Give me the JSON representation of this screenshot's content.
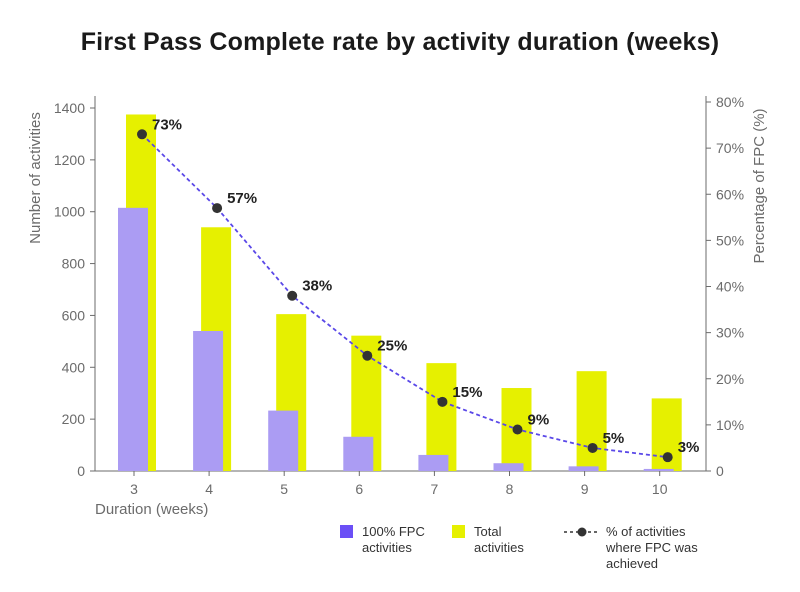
{
  "title": "First Pass Complete rate by activity duration (weeks)",
  "colors": {
    "fpc": "#ab9cf3",
    "total": "#e6f000",
    "line": "#5a48e8",
    "marker": "#333333",
    "axis": "#6b6b6b",
    "fpc_legend": "#6b4ff6"
  },
  "legend": {
    "fpc": "100% FPC activities",
    "total": "Total activities",
    "pct": "% of activities where FPC was achieved"
  },
  "chart_data": {
    "type": "bar",
    "categories": [
      "3",
      "4",
      "5",
      "6",
      "7",
      "8",
      "9",
      "10"
    ],
    "series": [
      {
        "name": "100% FPC activities",
        "values": [
          1015,
          540,
          233,
          132,
          62,
          30,
          18,
          8
        ]
      },
      {
        "name": "Total activities",
        "values": [
          1375,
          940,
          605,
          522,
          416,
          320,
          385,
          280
        ]
      },
      {
        "name": "% of activities where FPC was achieved",
        "values": [
          73,
          57,
          38,
          25,
          15,
          9,
          5,
          3
        ],
        "axis": "right"
      }
    ],
    "point_labels": [
      "73%",
      "57%",
      "38%",
      "25%",
      "15%",
      "9%",
      "5%",
      "3%"
    ],
    "xlabel": "Duration (weeks)",
    "ylabel": "Number of activities",
    "y2label": "Percentage of FPC (%)",
    "ylim": [
      0,
      1400
    ],
    "y2lim": [
      0,
      80
    ],
    "yticks": [
      "0",
      "200",
      "400",
      "600",
      "800",
      "1000",
      "1200",
      "1400"
    ],
    "y2ticks": [
      "0",
      "10%",
      "20%",
      "30%",
      "40%",
      "50%",
      "60%",
      "70%",
      "80%"
    ],
    "grid": false,
    "legend_position": "bottom"
  }
}
